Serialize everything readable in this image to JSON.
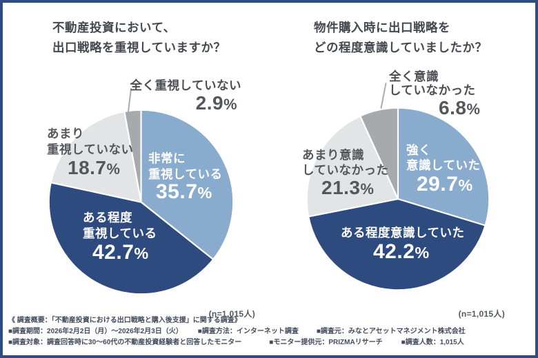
{
  "chart_data": [
    {
      "type": "pie",
      "title": "不動産投資において、出口戦略を重視していますか？",
      "labels": [
        "非常に重視している",
        "ある程度重視している",
        "あまり重視していない",
        "全く重視していない"
      ],
      "values": [
        35.7,
        42.7,
        18.7,
        2.9
      ],
      "colors": [
        "#89abce",
        "#2e4b80",
        "#e3e4e6",
        "#a7aaad"
      ],
      "start_angle_deg": 0,
      "direction": "clockwise",
      "n_label": "(n=1,015人)"
    },
    {
      "type": "pie",
      "title": "物件購入時に出口戦略をどの程度意識していましたか？",
      "labels": [
        "強く意識していた",
        "ある程度意識していた",
        "あまり意識していなかった",
        "全く意識していなかった"
      ],
      "values": [
        29.7,
        42.2,
        21.3,
        6.8
      ],
      "colors": [
        "#89abce",
        "#2e4b80",
        "#e3e4e6",
        "#a7aaad"
      ],
      "start_angle_deg": 0,
      "direction": "clockwise",
      "n_label": "(n=1,015人)"
    }
  ],
  "charts": [
    {
      "title_lines": [
        "不動産投資において、",
        "出口戦略を重視していますか？"
      ],
      "n_label": "(n=1,015人)",
      "slices": [
        {
          "line1": "非常に",
          "line2": "重視している",
          "pct": "35.7",
          "pct_suffix": "%"
        },
        {
          "line1": "ある程度",
          "line2": "重視している",
          "pct": "42.7",
          "pct_suffix": "%"
        },
        {
          "line1": "あまり",
          "line2": "重視していない",
          "pct": "18.7",
          "pct_suffix": "%"
        },
        {
          "line1": "全く重視していない",
          "pct": "2.9",
          "pct_suffix": "%"
        }
      ]
    },
    {
      "title_lines": [
        "物件購入時に出口戦略を",
        "どの程度意識していましたか？"
      ],
      "n_label": "(n=1,015人)",
      "slices": [
        {
          "line1": "強く",
          "line2": "意識していた",
          "pct": "29.7",
          "pct_suffix": "%"
        },
        {
          "line1": "ある程度意識していた",
          "pct": "42.2",
          "pct_suffix": "%"
        },
        {
          "line1": "あまり意識",
          "line2": "していなかった",
          "pct": "21.3",
          "pct_suffix": "%"
        },
        {
          "line1": "全く意識",
          "line2": "していなかった",
          "pct": "6.8",
          "pct_suffix": "%"
        }
      ]
    }
  ],
  "footer": {
    "line1": "《 調査概要：「不動産投資における出口戦略と購入後支援」に関する調査》",
    "line2_segments": [
      "■調査期間：2026年2月2日（月）〜2026年2月3日（火）",
      "■調査方法：インターネット調査",
      "■調査元：みなとアセットマネジメント株式会社"
    ],
    "line3_segments": [
      "■調査対象：調査回答時に30〜60代の不動産投資経験者と回答したモニター",
      "■モニター提供元：PRIZMAリサーチ",
      "■調査人数：1,015人"
    ]
  },
  "colors": {
    "frame_border": "#2e4c7f",
    "slice_light_blue": "#89abce",
    "slice_dark_blue": "#2e4b80",
    "slice_light_gray": "#e3e4e6",
    "slice_mid_gray": "#a7aaad",
    "label_gray": "#54575d",
    "title_gray": "#45484f",
    "footer_navy": "#434c5c"
  }
}
